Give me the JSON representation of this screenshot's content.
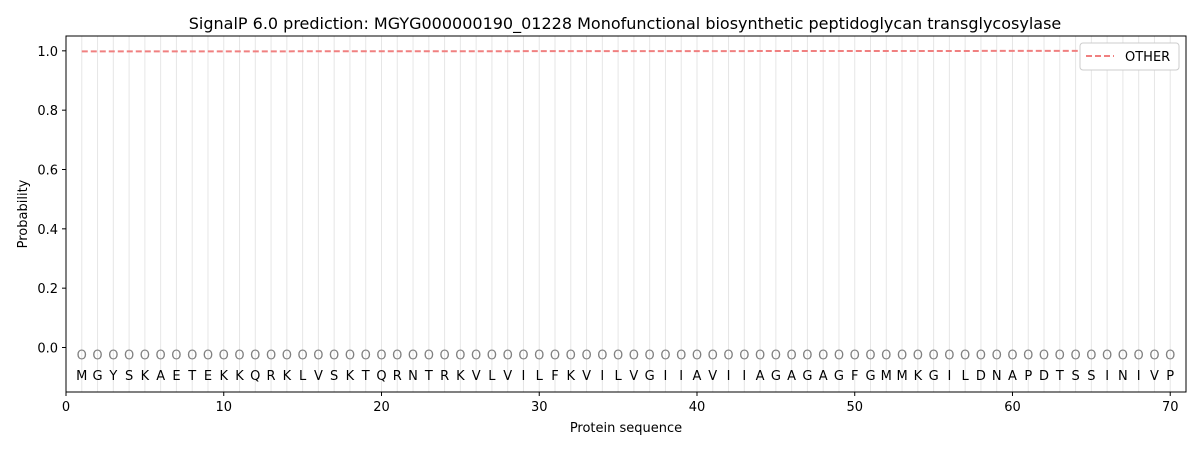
{
  "chart_data": {
    "type": "line",
    "title": "SignalP 6.0 prediction: MGYG000000190_01228 Monofunctional biosynthetic peptidoglycan transglycosylase",
    "xlabel": "Protein sequence",
    "ylabel": "Probability",
    "xlim": [
      0,
      71
    ],
    "ylim": [
      -0.15,
      1.05
    ],
    "xticks": [
      0,
      10,
      20,
      30,
      40,
      50,
      60,
      70
    ],
    "yticks": [
      0.0,
      0.2,
      0.4,
      0.6,
      0.8,
      1.0
    ],
    "grid": "vertical lines at each residue position",
    "legend_position": "top-right",
    "sequence": [
      "M",
      "G",
      "Y",
      "S",
      "K",
      "A",
      "E",
      "T",
      "E",
      "K",
      "K",
      "Q",
      "R",
      "K",
      "L",
      "V",
      "S",
      "K",
      "T",
      "Q",
      "R",
      "N",
      "T",
      "R",
      "K",
      "V",
      "L",
      "V",
      "I",
      "L",
      "F",
      "K",
      "V",
      "I",
      "L",
      "V",
      "G",
      "I",
      "I",
      "A",
      "V",
      "I",
      "I",
      "A",
      "G",
      "A",
      "G",
      "A",
      "G",
      "F",
      "G",
      "M",
      "M",
      "K",
      "G",
      "I",
      "L",
      "D",
      "N",
      "A",
      "P",
      "D",
      "T",
      "S",
      "S",
      "I",
      "N",
      "I",
      "V",
      "P"
    ],
    "predicted_state": "O",
    "series": [
      {
        "name": "OTHER",
        "color": "#f08080",
        "style": "dashed",
        "x_start": 1,
        "x_end": 70,
        "values_start": 0.998,
        "values_end": 1.0
      }
    ]
  }
}
